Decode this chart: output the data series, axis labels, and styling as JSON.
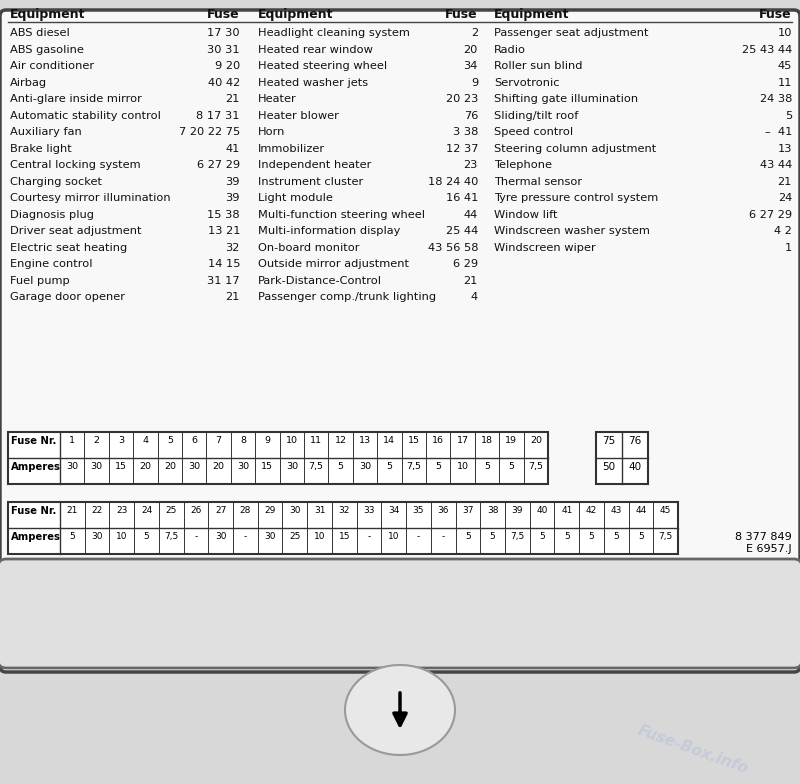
{
  "bg_color": "#ffffff",
  "border_color": "#555555",
  "col1_items": [
    [
      "ABS diesel",
      "17 30"
    ],
    [
      "ABS gasoline",
      "30 31"
    ],
    [
      "Air conditioner",
      "9 20"
    ],
    [
      "Airbag",
      "40 42"
    ],
    [
      "Anti-glare inside mirror",
      "21"
    ],
    [
      "Automatic stability control",
      "8 17 31"
    ],
    [
      "Auxiliary fan",
      "7 20 22 75"
    ],
    [
      "Brake light",
      "41"
    ],
    [
      "Central locking system",
      "6 27 29"
    ],
    [
      "Charging socket",
      "39"
    ],
    [
      "Courtesy mirror illumination",
      "39"
    ],
    [
      "Diagnosis plug",
      "15 38"
    ],
    [
      "Driver seat adjustment",
      "13 21"
    ],
    [
      "Electric seat heating",
      "32"
    ],
    [
      "Engine control",
      "14 15"
    ],
    [
      "Fuel pump",
      "31 17"
    ],
    [
      "Garage door opener",
      "21"
    ]
  ],
  "col2_items": [
    [
      "Headlight cleaning system",
      "2"
    ],
    [
      "Heated rear window",
      "20"
    ],
    [
      "Heated steering wheel",
      "34"
    ],
    [
      "Heated washer jets",
      "9"
    ],
    [
      "Heater",
      "20 23"
    ],
    [
      "Heater blower",
      "76"
    ],
    [
      "Horn",
      "3 38"
    ],
    [
      "Immobilizer",
      "12 37"
    ],
    [
      "Independent heater",
      "23"
    ],
    [
      "Instrument cluster",
      "18 24 40"
    ],
    [
      "Light module",
      "16 41"
    ],
    [
      "Multi-function steering wheel",
      "44"
    ],
    [
      "Multi-information display",
      "25 44"
    ],
    [
      "On-board monitor",
      "43 56 58"
    ],
    [
      "Outside mirror adjustment",
      "6 29"
    ],
    [
      "Park-Distance-Control",
      "21"
    ],
    [
      "Passenger comp./trunk lighting",
      "4"
    ]
  ],
  "col3_items": [
    [
      "Passenger seat adjustment",
      "10"
    ],
    [
      "Radio",
      "25 43 44"
    ],
    [
      "Roller sun blind",
      "45"
    ],
    [
      "Servotronic",
      "11"
    ],
    [
      "Shifting gate illumination",
      "24 38"
    ],
    [
      "Sliding/tilt roof",
      "5"
    ],
    [
      "Speed control",
      "–  41"
    ],
    [
      "Steering column adjustment",
      "13"
    ],
    [
      "Telephone",
      "43 44"
    ],
    [
      "Thermal sensor",
      "21"
    ],
    [
      "Tyre pressure control system",
      "24"
    ],
    [
      "Window lift",
      "6 27 29"
    ],
    [
      "Windscreen washer system",
      "4 2"
    ],
    [
      "Windscreen wiper",
      "1"
    ]
  ],
  "table1_fuse_nr": [
    "1",
    "2",
    "3",
    "4",
    "5",
    "6",
    "7",
    "8",
    "9",
    "10",
    "11",
    "12",
    "13",
    "14",
    "15",
    "16",
    "17",
    "18",
    "19",
    "20"
  ],
  "table1_amperes": [
    "30",
    "30",
    "15",
    "20",
    "20",
    "30",
    "20",
    "30",
    "15",
    "30",
    "7,5",
    "5",
    "30",
    "5",
    "7,5",
    "5",
    "10",
    "5",
    "5",
    "7,5"
  ],
  "table2_fuse_nr": [
    "21",
    "22",
    "23",
    "24",
    "25",
    "26",
    "27",
    "28",
    "29",
    "30",
    "31",
    "32",
    "33",
    "34",
    "35",
    "36",
    "37",
    "38",
    "39",
    "40",
    "41",
    "42",
    "43",
    "44",
    "45"
  ],
  "table2_amperes": [
    "5",
    "30",
    "10",
    "5",
    "7,5",
    "-",
    "30",
    "-",
    "30",
    "25",
    "10",
    "15",
    "-",
    "10",
    "-",
    "-",
    "5",
    "5",
    "7,5",
    "5",
    "5",
    "5",
    "5",
    "5",
    "7,5"
  ],
  "table_extra_fuse_nr": [
    "75",
    "76"
  ],
  "table_extra_amperes": [
    "50",
    "40"
  ],
  "part_number": "8 377 849\nE 6957.J",
  "watermark": "Fuse-Box.info"
}
